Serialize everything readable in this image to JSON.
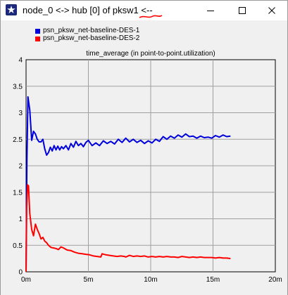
{
  "window": {
    "title": "node_0 <-> hub [0] of pksw1 <--",
    "icon": "opnet-star-icon",
    "annotation_color": "#ff0000"
  },
  "chart_data": {
    "type": "line",
    "title": "time_average (in point-to-point.utilization)",
    "xlabel": "",
    "ylabel": "",
    "xlim": [
      0,
      20
    ],
    "ylim": [
      0,
      4
    ],
    "x_unit": "minutes",
    "grid": true,
    "legend_position": "top-left",
    "x_ticks": [
      "0m",
      "5m",
      "10m",
      "15m",
      "20m"
    ],
    "y_ticks": [
      "0",
      "0.5",
      "1",
      "1.5",
      "2",
      "2.5",
      "3",
      "3.5",
      "4"
    ],
    "series": [
      {
        "name": "psn_pksw_net-baseline-DES-1",
        "color": "#0000dd",
        "x": [
          0,
          0.07,
          0.15,
          0.3,
          0.45,
          0.6,
          0.75,
          0.9,
          1.05,
          1.2,
          1.35,
          1.5,
          1.65,
          1.8,
          1.95,
          2.1,
          2.25,
          2.4,
          2.55,
          2.7,
          2.85,
          3.0,
          3.2,
          3.4,
          3.6,
          3.8,
          4.0,
          4.2,
          4.4,
          4.6,
          4.8,
          5.0,
          5.3,
          5.6,
          5.9,
          6.2,
          6.5,
          6.8,
          7.1,
          7.4,
          7.7,
          8.0,
          8.3,
          8.6,
          8.9,
          9.2,
          9.5,
          9.8,
          10.1,
          10.4,
          10.7,
          11.0,
          11.3,
          11.6,
          11.9,
          12.2,
          12.5,
          12.8,
          13.1,
          13.4,
          13.7,
          14.0,
          14.3,
          14.6,
          14.9,
          15.2,
          15.5,
          15.8,
          16.1,
          16.4
        ],
        "y": [
          0,
          2.1,
          3.3,
          3.05,
          2.48,
          2.65,
          2.6,
          2.5,
          2.45,
          2.45,
          2.5,
          2.32,
          2.2,
          2.25,
          2.35,
          2.28,
          2.38,
          2.3,
          2.37,
          2.3,
          2.36,
          2.32,
          2.38,
          2.3,
          2.42,
          2.35,
          2.46,
          2.38,
          2.42,
          2.36,
          2.44,
          2.48,
          2.38,
          2.43,
          2.38,
          2.47,
          2.42,
          2.46,
          2.41,
          2.5,
          2.44,
          2.52,
          2.45,
          2.5,
          2.44,
          2.48,
          2.42,
          2.47,
          2.43,
          2.5,
          2.46,
          2.55,
          2.5,
          2.56,
          2.52,
          2.58,
          2.54,
          2.6,
          2.55,
          2.56,
          2.52,
          2.56,
          2.53,
          2.54,
          2.52,
          2.57,
          2.54,
          2.58,
          2.55,
          2.56
        ]
      },
      {
        "name": "psn_pksw_net-baseline-DES-2",
        "color": "#ff0000",
        "x": [
          0,
          0.05,
          0.12,
          0.2,
          0.3,
          0.45,
          0.6,
          0.75,
          0.9,
          1.05,
          1.2,
          1.35,
          1.5,
          1.65,
          1.8,
          2.0,
          2.2,
          2.4,
          2.6,
          2.8,
          3.0,
          3.3,
          3.6,
          3.9,
          4.2,
          4.5,
          4.8,
          5.1,
          5.4,
          5.7,
          6.0,
          6.1,
          6.4,
          6.7,
          7.0,
          7.3,
          7.6,
          7.9,
          8.0,
          8.3,
          8.6,
          8.9,
          9.2,
          9.5,
          9.8,
          10.1,
          10.4,
          10.7,
          11.0,
          11.3,
          11.6,
          11.9,
          12.2,
          12.5,
          12.8,
          13.1,
          13.4,
          13.7,
          14.0,
          14.3,
          14.6,
          14.9,
          15.2,
          15.5,
          15.8,
          16.1,
          16.4
        ],
        "y": [
          0,
          1.2,
          1.64,
          1.62,
          1.1,
          0.8,
          0.68,
          0.9,
          0.8,
          0.72,
          0.62,
          0.65,
          0.58,
          0.55,
          0.5,
          0.46,
          0.45,
          0.44,
          0.42,
          0.47,
          0.45,
          0.41,
          0.4,
          0.37,
          0.35,
          0.34,
          0.33,
          0.32,
          0.3,
          0.29,
          0.28,
          0.34,
          0.32,
          0.31,
          0.3,
          0.29,
          0.3,
          0.29,
          0.28,
          0.31,
          0.29,
          0.3,
          0.29,
          0.3,
          0.28,
          0.29,
          0.28,
          0.29,
          0.28,
          0.29,
          0.28,
          0.28,
          0.27,
          0.29,
          0.28,
          0.27,
          0.28,
          0.27,
          0.28,
          0.27,
          0.27,
          0.27,
          0.26,
          0.27,
          0.26,
          0.26,
          0.25
        ]
      }
    ]
  }
}
